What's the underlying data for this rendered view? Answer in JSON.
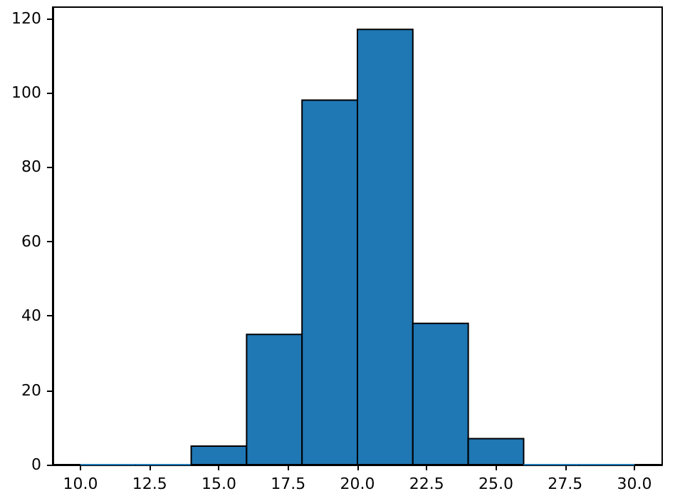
{
  "chart_data": {
    "type": "histogram",
    "bins": [
      10,
      12,
      14,
      16,
      18,
      20,
      22,
      24,
      26,
      28,
      30
    ],
    "values": [
      0,
      0,
      5,
      35,
      98,
      117,
      38,
      7,
      0,
      0
    ],
    "color": "#1f77b4",
    "xlim": [
      9,
      31
    ],
    "ylim": [
      0,
      123
    ],
    "xticks": [
      {
        "value": 10,
        "label": "10.0"
      },
      {
        "value": 12.5,
        "label": "12.5"
      },
      {
        "value": 15,
        "label": "15.0"
      },
      {
        "value": 17.5,
        "label": "17.5"
      },
      {
        "value": 20,
        "label": "20.0"
      },
      {
        "value": 22.5,
        "label": "22.5"
      },
      {
        "value": 25,
        "label": "25.0"
      },
      {
        "value": 27.5,
        "label": "27.5"
      },
      {
        "value": 30,
        "label": "30.0"
      }
    ],
    "yticks": [
      0,
      20,
      40,
      60,
      80,
      100,
      120
    ],
    "grid": false
  }
}
